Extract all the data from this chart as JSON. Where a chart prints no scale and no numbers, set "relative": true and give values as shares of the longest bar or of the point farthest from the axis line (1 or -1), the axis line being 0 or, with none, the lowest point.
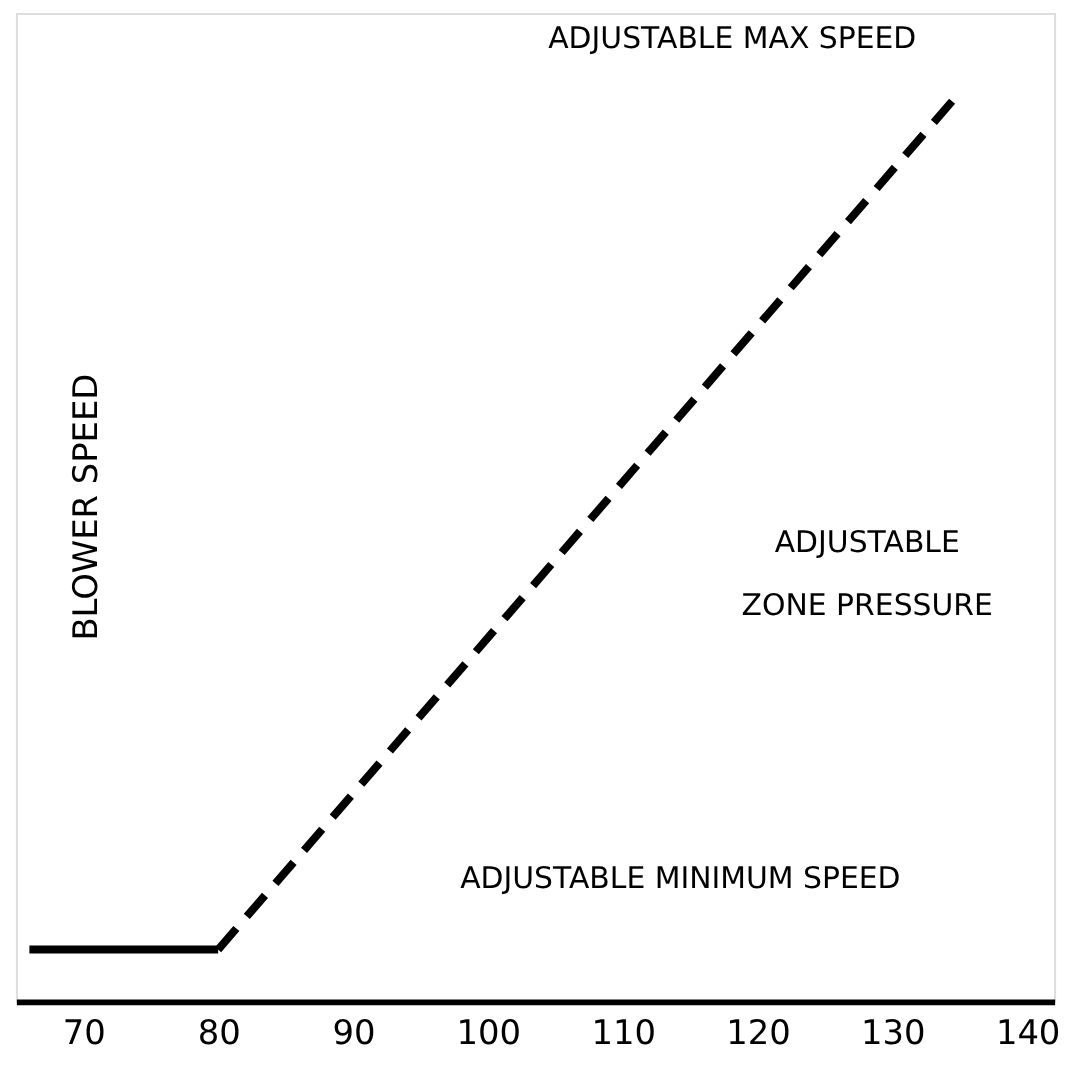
{
  "chart_data": {
    "type": "line",
    "relative": true,
    "ylabel": "BLOWER SPEED",
    "series": [
      {
        "x": [
          66,
          80
        ],
        "values": [
          0.057,
          0.057
        ],
        "color": "#000000",
        "line_style": "solid"
      },
      {
        "x": [
          80,
          135
        ],
        "values": [
          0.057,
          1
        ],
        "color": "#000000",
        "line_style": "dashed"
      }
    ],
    "xlim": [
      65,
      142
    ],
    "xticks": [
      70,
      80,
      90,
      100,
      110,
      120,
      130,
      140
    ],
    "tick_labels": "x",
    "grid": false,
    "marker": "none",
    "annotations": [
      "ADJUSTABLE MAX SPEED",
      "ADJUSTABLE\nZONE PRESSURE",
      "ADJUSTABLE MINIMUM SPEED"
    ]
  }
}
